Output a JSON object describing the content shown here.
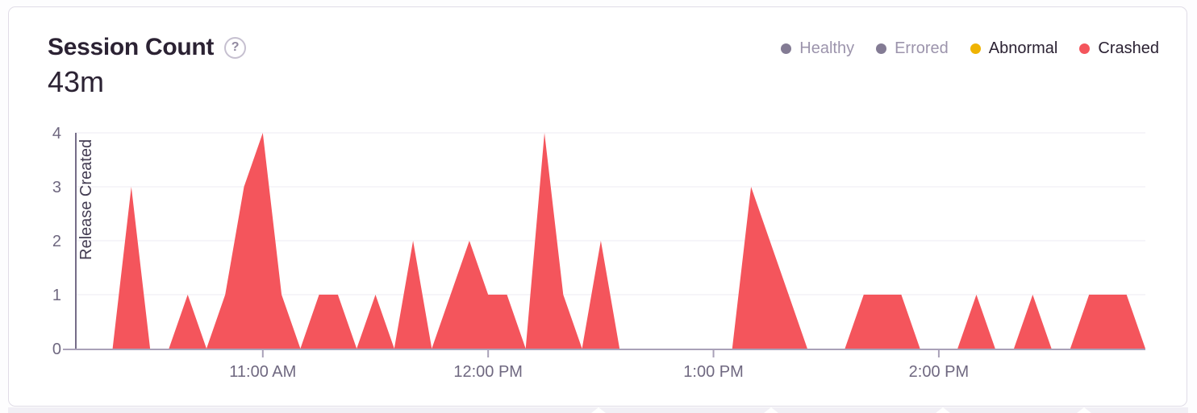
{
  "header": {
    "title": "Session Count",
    "help_glyph": "?",
    "total": "43m"
  },
  "legend": {
    "items": [
      {
        "label": "Healthy",
        "dot_color": "#837B94",
        "label_color": "#9C94AC",
        "selected": false
      },
      {
        "label": "Errored",
        "dot_color": "#837B94",
        "label_color": "#9C94AC",
        "selected": false
      },
      {
        "label": "Abnormal",
        "dot_color": "#EFB302",
        "label_color": "#2B2233",
        "selected": true
      },
      {
        "label": "Crashed",
        "dot_color": "#F4555C",
        "label_color": "#2B2233",
        "selected": true
      }
    ]
  },
  "chart_data": {
    "type": "area",
    "title": "Session Count",
    "xlabel": "",
    "ylabel": "",
    "ylim": [
      0,
      4
    ],
    "y_ticks": [
      0,
      1,
      2,
      3,
      4
    ],
    "grid": true,
    "legend_position": "top-right",
    "x": [
      "10:10 AM",
      "10:15 AM",
      "10:20 AM",
      "10:25 AM",
      "10:30 AM",
      "10:35 AM",
      "10:40 AM",
      "10:45 AM",
      "10:50 AM",
      "10:55 AM",
      "11:00 AM",
      "11:05 AM",
      "11:10 AM",
      "11:15 AM",
      "11:20 AM",
      "11:25 AM",
      "11:30 AM",
      "11:35 AM",
      "11:40 AM",
      "11:45 AM",
      "11:50 AM",
      "11:55 AM",
      "12:00 PM",
      "12:05 PM",
      "12:10 PM",
      "12:15 PM",
      "12:20 PM",
      "12:25 PM",
      "12:30 PM",
      "12:35 PM",
      "12:40 PM",
      "12:45 PM",
      "12:50 PM",
      "12:55 PM",
      "1:00 PM",
      "1:05 PM",
      "1:10 PM",
      "1:15 PM",
      "1:20 PM",
      "1:25 PM",
      "1:30 PM",
      "1:35 PM",
      "1:40 PM",
      "1:45 PM",
      "1:50 PM",
      "1:55 PM",
      "2:00 PM",
      "2:05 PM",
      "2:10 PM",
      "2:15 PM",
      "2:20 PM",
      "2:25 PM",
      "2:30 PM",
      "2:35 PM",
      "2:40 PM",
      "2:45 PM",
      "2:50 PM",
      "2:55 PM"
    ],
    "series": [
      {
        "name": "Crashed",
        "color": "#F4555C",
        "values": [
          0,
          0,
          0,
          3,
          0,
          0,
          1,
          0,
          1,
          3,
          4,
          1,
          0,
          1,
          1,
          0,
          1,
          0,
          2,
          0,
          1,
          2,
          1,
          1,
          0,
          4,
          1,
          0,
          2,
          0,
          0,
          0,
          0,
          0,
          0,
          0,
          3,
          2,
          1,
          0,
          0,
          0,
          1,
          1,
          1,
          0,
          0,
          0,
          1,
          0,
          0,
          1,
          0,
          0,
          1,
          1,
          1,
          0
        ]
      }
    ],
    "x_ticks": [
      {
        "label": "11:00 AM",
        "index": 10
      },
      {
        "label": "12:00 PM",
        "index": 22
      },
      {
        "label": "1:00 PM",
        "index": 34
      },
      {
        "label": "2:00 PM",
        "index": 46
      }
    ],
    "release_line": {
      "label": "Release Created",
      "time": "10:10 AM"
    }
  },
  "colors": {
    "crashed": "#F4555C",
    "abnormal": "#EFB302",
    "healthy_errored_dot": "#837B94",
    "muted_text": "#9C94AC",
    "title_text": "#2B2233",
    "tick_label": "#6F6880",
    "axis_line": "#A9A1B8",
    "grid_line": "#F4F2F7",
    "release_line": "#756D88",
    "release_label_text": "#433C52",
    "card_border": "#E0DCE7"
  }
}
